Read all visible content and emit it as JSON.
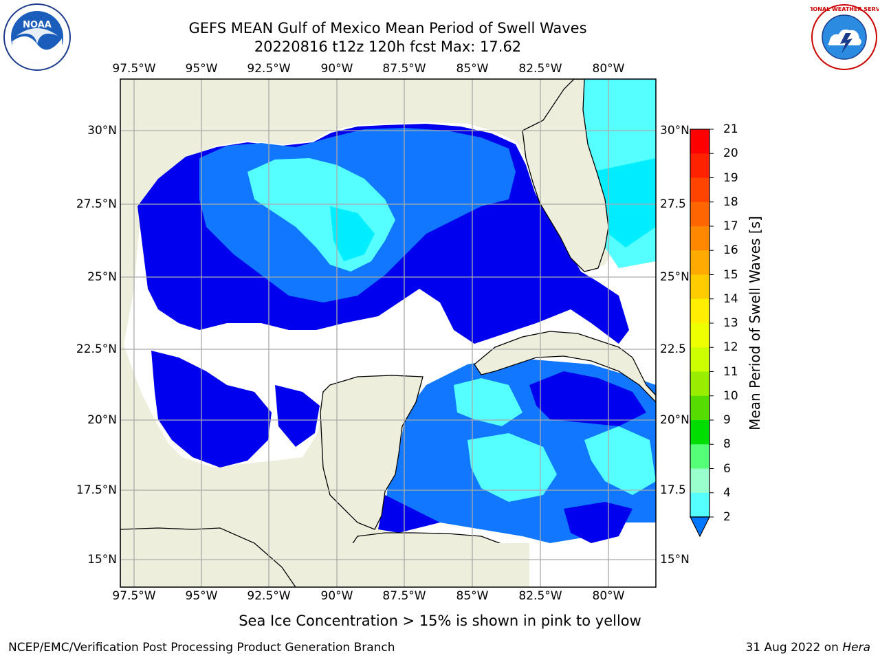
{
  "title_line1": "GEFS MEAN Gulf of Mexico Mean Period of Swell Waves",
  "title_line2": "20220816 t12z 120h fcst   Max: 17.62",
  "x_ticks": [
    "97.5°W",
    "95°W",
    "92.5°W",
    "90°W",
    "87.5°W",
    "85°W",
    "82.5°W",
    "80°W"
  ],
  "y_ticks": [
    "30°N",
    "27.5°N",
    "25°N",
    "22.5°N",
    "20°N",
    "17.5°N",
    "15°N"
  ],
  "y_ticks_right": [
    "30°N",
    "27.5",
    "25°N",
    "22.5",
    "20°N",
    "17.5",
    "15°N"
  ],
  "colorbar": {
    "label": "Mean Period of Swell Waves [s]",
    "ticks": [
      "21",
      "20",
      "19",
      "18",
      "17",
      "16",
      "15",
      "14",
      "13",
      "12",
      "11",
      "10",
      "9",
      "8",
      "6",
      "4",
      "2"
    ],
    "colors": [
      "#ff0000",
      "#ff2200",
      "#ff4400",
      "#ff6600",
      "#ff8800",
      "#ffaa00",
      "#ffcc00",
      "#ffee00",
      "#eeff00",
      "#ccff00",
      "#99ee00",
      "#55dd00",
      "#00dd00",
      "#55ff77",
      "#99ffcc",
      "#55ffff",
      "#00eeff",
      "#0077ff"
    ]
  },
  "note": "Sea Ice Concentration > 15% is shown in pink to yellow",
  "footer_left": "NCEP/EMC/Verification Post Processing Product Generation Branch",
  "footer_date": "31 Aug 2022 on",
  "footer_host": "Hera",
  "logos": {
    "left": "NOAA",
    "right": "NATIONAL WEATHER SERVICE"
  },
  "map_colors": {
    "land": "#eeeedd",
    "white": "#ffffff",
    "deep_blue": "#0000ee",
    "mid_blue": "#1177ff",
    "light_cyan": "#55ffff",
    "cyan": "#00ddff",
    "green": "#44dd44"
  }
}
